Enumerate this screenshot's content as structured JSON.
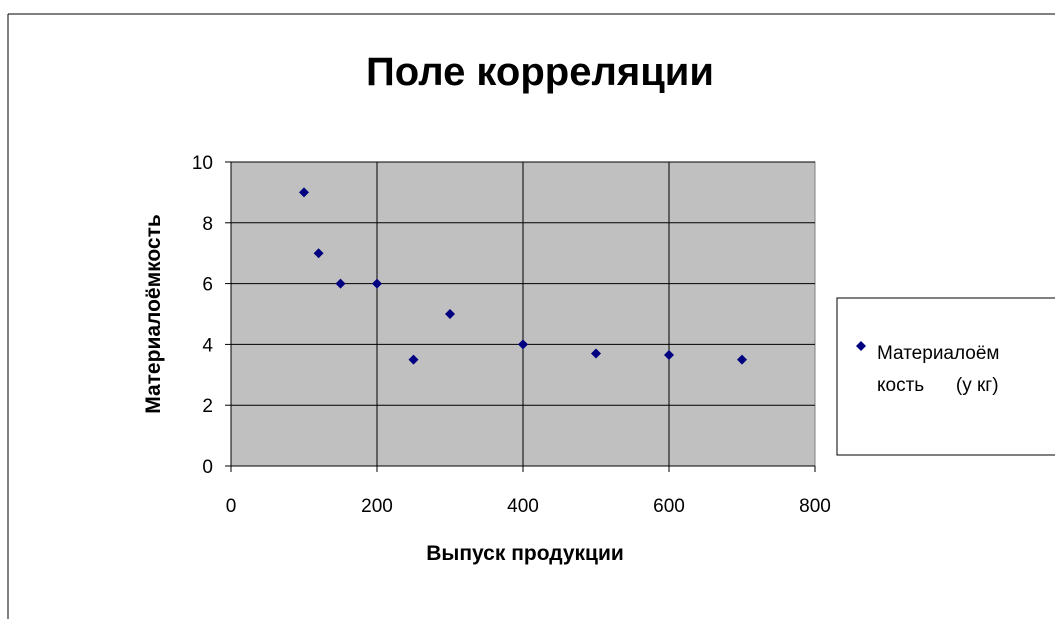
{
  "chart_data": {
    "type": "scatter",
    "title": "Поле корреляции",
    "xlabel": "Выпуск продукции",
    "ylabel": "Материалоёмкость",
    "xlim": [
      0,
      800
    ],
    "ylim": [
      0,
      10
    ],
    "xticks": [
      0,
      200,
      400,
      600,
      800
    ],
    "yticks": [
      0,
      2,
      4,
      6,
      8,
      10
    ],
    "grid": true,
    "legend_position": "right",
    "plot_background": "#c0c0c0",
    "series": [
      {
        "name": "Материалоёмкость (у кг)",
        "legend_lines": [
          "Материалоём",
          "кость      (у кг)"
        ],
        "color": "#000080",
        "marker": "diamond",
        "points": [
          {
            "x": 100,
            "y": 9
          },
          {
            "x": 120,
            "y": 7
          },
          {
            "x": 150,
            "y": 6
          },
          {
            "x": 200,
            "y": 6
          },
          {
            "x": 250,
            "y": 3.5
          },
          {
            "x": 300,
            "y": 5
          },
          {
            "x": 400,
            "y": 4
          },
          {
            "x": 500,
            "y": 3.7
          },
          {
            "x": 600,
            "y": 3.65
          },
          {
            "x": 700,
            "y": 3.5
          }
        ]
      }
    ]
  }
}
